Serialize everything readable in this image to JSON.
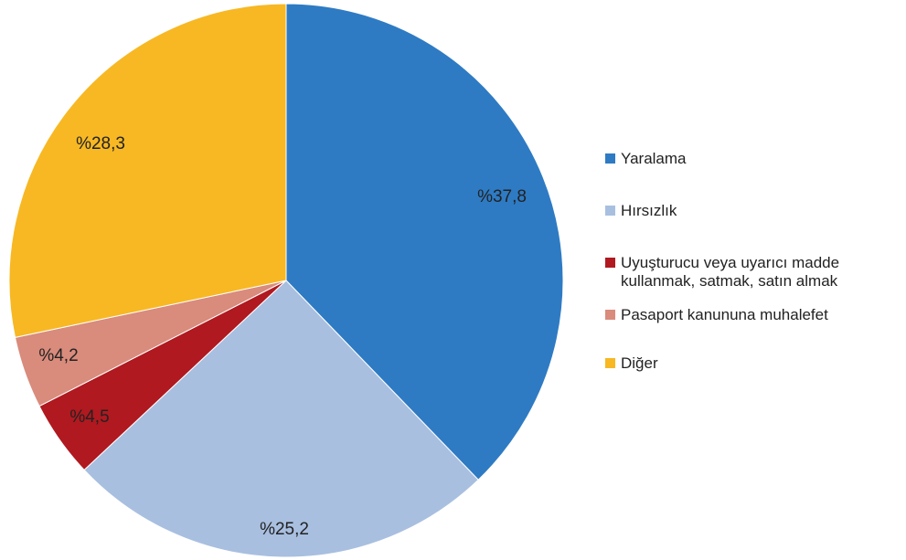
{
  "chart_data": {
    "type": "pie",
    "categories": [
      "Yaralama",
      "Hırsızlık",
      "Uyuşturucu veya uyarıcı madde kullanmak, satmak, satın almak",
      "Pasaport kanununa muhalefet",
      "Diğer"
    ],
    "legend_lines": [
      [
        "Yaralama"
      ],
      [
        "Hırsızlık"
      ],
      [
        "Uyuşturucu veya uyarıcı madde",
        "kullanmak, satmak, satın almak"
      ],
      [
        "Pasaport kanununa muhalefet"
      ],
      [
        "Diğer"
      ]
    ],
    "values": [
      37.8,
      25.2,
      4.5,
      4.2,
      28.3
    ],
    "labels": [
      "%37,8",
      "%25,2",
      "%4,5",
      "%4,2",
      "%28,3"
    ],
    "colors": [
      "#2e7bc4",
      "#a8bfe0",
      "#b0191f",
      "#d98b7c",
      "#f7b823"
    ],
    "start_angle": "12 o'clock",
    "direction": "clockwise",
    "legend_position": "right"
  }
}
